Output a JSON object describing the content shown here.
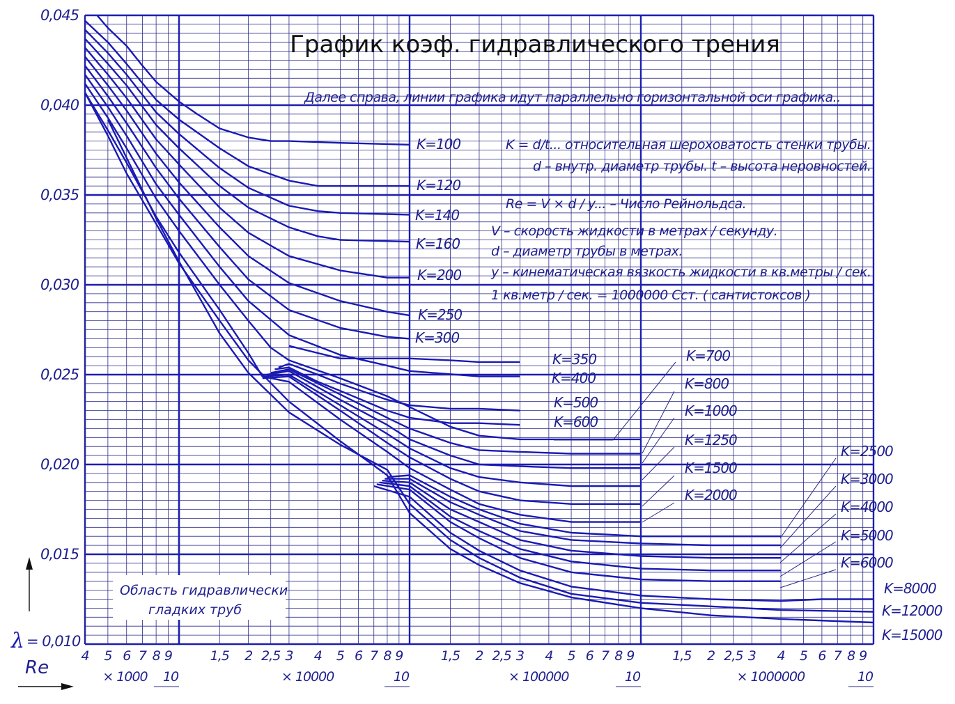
{
  "chart_data": {
    "type": "line",
    "title": "График коэф. гидравлического трения",
    "ylabel": "λ",
    "xlabel": "Re",
    "ylim": [
      0.01,
      0.045
    ],
    "xlim": [
      4000,
      10000000
    ],
    "x_scale": "log",
    "grid": true,
    "y_ticks": [
      "0,045",
      "0,040",
      "0,035",
      "0,030",
      "0,025",
      "0,020",
      "0,015",
      "0,010"
    ],
    "y_tick_values": [
      0.045,
      0.04,
      0.035,
      0.03,
      0.025,
      0.02,
      0.015,
      0.01
    ],
    "x_decades": [
      {
        "ticks": [
          "4",
          "5",
          "6",
          "7",
          "8",
          "9"
        ],
        "values": [
          4000,
          5000,
          6000,
          7000,
          8000,
          9000
        ],
        "multiplier": "× 1000",
        "end": "10",
        "end_value": 10000
      },
      {
        "ticks": [
          "1,5",
          "2",
          "2,5",
          "3",
          "4",
          "5",
          "6",
          "7",
          "8",
          "9"
        ],
        "values": [
          15000,
          20000,
          25000,
          30000,
          40000,
          50000,
          60000,
          70000,
          80000,
          90000
        ],
        "multiplier": "× 10000",
        "end": "10",
        "end_value": 100000
      },
      {
        "ticks": [
          "1,5",
          "2",
          "2,5",
          "3",
          "4",
          "5",
          "6",
          "7",
          "8",
          "9"
        ],
        "values": [
          150000,
          200000,
          250000,
          300000,
          400000,
          500000,
          600000,
          700000,
          800000,
          900000
        ],
        "multiplier": "× 100000",
        "end": "10",
        "end_value": 1000000
      },
      {
        "ticks": [
          "1,5",
          "2",
          "2,5",
          "3",
          "4",
          "5",
          "6",
          "7",
          "8",
          "9"
        ],
        "values": [
          1500000,
          2000000,
          2500000,
          3000000,
          4000000,
          5000000,
          6000000,
          7000000,
          8000000,
          9000000
        ],
        "multiplier": "× 1000000",
        "end": "10",
        "end_value": 10000000
      }
    ],
    "series": [
      {
        "name": "K=100",
        "x": [
          4500,
          5000,
          6000,
          7000,
          8000,
          10000,
          12000,
          15000,
          20000,
          25000,
          30000,
          50000,
          100000
        ],
        "y": [
          0.045,
          0.0443,
          0.0433,
          0.0422,
          0.0413,
          0.0402,
          0.0395,
          0.0387,
          0.0382,
          0.038,
          0.038,
          0.0379,
          0.0378
        ]
      },
      {
        "name": "K=120",
        "x": [
          4000,
          5000,
          6000,
          8000,
          10000,
          15000,
          20000,
          30000,
          40000,
          50000,
          100000
        ],
        "y": [
          0.0447,
          0.0435,
          0.0423,
          0.0403,
          0.0392,
          0.0376,
          0.0366,
          0.0358,
          0.0355,
          0.0355,
          0.0355
        ]
      },
      {
        "name": "K=140",
        "x": [
          4000,
          5000,
          6000,
          8000,
          10000,
          15000,
          20000,
          30000,
          40000,
          50000,
          100000
        ],
        "y": [
          0.0442,
          0.0429,
          0.0417,
          0.0396,
          0.0384,
          0.0365,
          0.0354,
          0.0344,
          0.0341,
          0.034,
          0.0339
        ]
      },
      {
        "name": "K=160",
        "x": [
          4000,
          5000,
          6000,
          8000,
          10000,
          15000,
          20000,
          30000,
          40000,
          50000,
          100000
        ],
        "y": [
          0.0437,
          0.0423,
          0.0411,
          0.0389,
          0.0376,
          0.0355,
          0.0343,
          0.0332,
          0.0327,
          0.0325,
          0.0324
        ]
      },
      {
        "name": "K=200",
        "x": [
          4000,
          5000,
          6000,
          8000,
          10000,
          15000,
          20000,
          30000,
          50000,
          80000,
          100000
        ],
        "y": [
          0.0432,
          0.0417,
          0.0404,
          0.0381,
          0.0367,
          0.0343,
          0.0329,
          0.0316,
          0.0308,
          0.0304,
          0.0304
        ]
      },
      {
        "name": "K=250",
        "x": [
          4000,
          5000,
          6000,
          8000,
          10000,
          15000,
          20000,
          30000,
          50000,
          80000,
          100000
        ],
        "y": [
          0.0427,
          0.0411,
          0.0397,
          0.0373,
          0.0357,
          0.0332,
          0.0316,
          0.0301,
          0.0291,
          0.0285,
          0.0283
        ]
      },
      {
        "name": "K=300",
        "x": [
          4000,
          5000,
          6000,
          8000,
          10000,
          15000,
          20000,
          30000,
          50000,
          80000,
          100000
        ],
        "y": [
          0.0422,
          0.0405,
          0.039,
          0.0365,
          0.0348,
          0.0321,
          0.0303,
          0.0286,
          0.0276,
          0.0271,
          0.027
        ]
      },
      {
        "name": "K=350",
        "x": [
          30000,
          40000,
          50000,
          80000,
          100000,
          150000,
          200000,
          300000
        ],
        "y": [
          0.0266,
          0.0262,
          0.0259,
          0.0259,
          0.0259,
          0.0258,
          0.0257,
          0.0257
        ]
      },
      {
        "name": "K=400",
        "x": [
          4000,
          5000,
          6000,
          8000,
          10000,
          15000,
          20000,
          30000,
          50000,
          80000,
          100000,
          200000,
          300000
        ],
        "y": [
          0.0417,
          0.0399,
          0.0383,
          0.0356,
          0.0339,
          0.031,
          0.0291,
          0.0272,
          0.0261,
          0.0255,
          0.0252,
          0.0249,
          0.0249
        ]
      },
      {
        "name": "K=500",
        "x": [
          27000,
          30000,
          40000,
          50000,
          80000,
          100000,
          150000,
          200000,
          300000
        ],
        "y": [
          0.0254,
          0.0256,
          0.025,
          0.0245,
          0.0236,
          0.0233,
          0.0231,
          0.0231,
          0.023
        ]
      },
      {
        "name": "K=600",
        "x": [
          26000,
          30000,
          40000,
          50000,
          80000,
          100000,
          150000,
          200000,
          300000
        ],
        "y": [
          0.0253,
          0.0254,
          0.0246,
          0.0241,
          0.023,
          0.0226,
          0.0223,
          0.0223,
          0.0222
        ]
      },
      {
        "name": "K=700",
        "x": [
          4000,
          5000,
          6000,
          8000,
          10000,
          15000,
          20000,
          25000,
          30000,
          50000,
          80000,
          100000,
          150000,
          200000,
          300000,
          500000,
          1000000
        ],
        "y": [
          0.0412,
          0.0393,
          0.0376,
          0.0348,
          0.033,
          0.03,
          0.028,
          0.0265,
          0.0258,
          0.0248,
          0.0238,
          0.0232,
          0.0221,
          0.0216,
          0.0214,
          0.0214,
          0.0214
        ]
      },
      {
        "name": "K=800",
        "x": [
          25000,
          30000,
          50000,
          80000,
          100000,
          150000,
          200000,
          300000,
          500000,
          1000000
        ],
        "y": [
          0.0251,
          0.0253,
          0.0239,
          0.0226,
          0.022,
          0.0212,
          0.0208,
          0.0207,
          0.0206,
          0.0206
        ]
      },
      {
        "name": "K=1000",
        "x": [
          24000,
          30000,
          50000,
          80000,
          100000,
          150000,
          200000,
          300000,
          500000,
          1000000
        ],
        "y": [
          0.025,
          0.0252,
          0.0236,
          0.0222,
          0.0214,
          0.0205,
          0.02,
          0.0199,
          0.0198,
          0.0198
        ]
      },
      {
        "name": "K=1250",
        "x": [
          23500,
          30000,
          50000,
          80000,
          100000,
          150000,
          200000,
          300000,
          500000,
          1000000
        ],
        "y": [
          0.0249,
          0.025,
          0.0233,
          0.0217,
          0.0209,
          0.0198,
          0.0193,
          0.019,
          0.0188,
          0.0188
        ]
      },
      {
        "name": "K=1500",
        "x": [
          23000,
          30000,
          50000,
          80000,
          100000,
          150000,
          200000,
          300000,
          500000,
          1000000
        ],
        "y": [
          0.0248,
          0.0249,
          0.023,
          0.0212,
          0.0204,
          0.0192,
          0.0185,
          0.018,
          0.0178,
          0.0178
        ]
      },
      {
        "name": "K=2000",
        "x": [
          4000,
          5000,
          6000,
          8000,
          10000,
          15000,
          20000,
          23000,
          30000,
          50000,
          80000,
          100000,
          150000,
          200000,
          300000,
          500000,
          1000000
        ],
        "y": [
          0.0407,
          0.0386,
          0.0368,
          0.0338,
          0.0318,
          0.0286,
          0.0262,
          0.0249,
          0.0246,
          0.0225,
          0.0207,
          0.0198,
          0.0186,
          0.0178,
          0.0172,
          0.0168,
          0.0168
        ]
      },
      {
        "name": "K=2500",
        "x": [
          80000,
          100000,
          150000,
          200000,
          300000,
          500000,
          1000000,
          2000000,
          4000000
        ],
        "y": [
          0.0193,
          0.0194,
          0.0182,
          0.0175,
          0.0167,
          0.0162,
          0.016,
          0.016,
          0.016
        ]
      },
      {
        "name": "K=3000",
        "x": [
          78000,
          100000,
          150000,
          200000,
          300000,
          500000,
          1000000,
          2000000,
          4000000
        ],
        "y": [
          0.0192,
          0.0192,
          0.0179,
          0.0172,
          0.0163,
          0.0158,
          0.0156,
          0.0155,
          0.0155
        ]
      },
      {
        "name": "K=4000",
        "x": [
          76000,
          100000,
          150000,
          200000,
          300000,
          500000,
          1000000,
          2000000,
          4000000
        ],
        "y": [
          0.0191,
          0.019,
          0.0175,
          0.0168,
          0.0158,
          0.0152,
          0.0149,
          0.0148,
          0.0148
        ]
      },
      {
        "name": "K=5000",
        "x": [
          74000,
          100000,
          150000,
          200000,
          300000,
          500000,
          1000000,
          2000000,
          4000000
        ],
        "y": [
          0.019,
          0.0188,
          0.0171,
          0.0163,
          0.0153,
          0.0146,
          0.0142,
          0.0141,
          0.0141
        ]
      },
      {
        "name": "K=6000",
        "x": [
          72000,
          100000,
          150000,
          200000,
          300000,
          500000,
          1000000,
          2000000,
          4000000
        ],
        "y": [
          0.0189,
          0.0186,
          0.0168,
          0.0159,
          0.0148,
          0.014,
          0.0136,
          0.0135,
          0.0135
        ]
      },
      {
        "name": "K=8000",
        "x": [
          70000,
          100000,
          150000,
          200000,
          300000,
          500000,
          1000000,
          2000000,
          4000000,
          6000000,
          10000000
        ],
        "y": [
          0.0188,
          0.0182,
          0.0162,
          0.0152,
          0.0141,
          0.0132,
          0.0127,
          0.0125,
          0.0124,
          0.0125,
          0.0125
        ]
      },
      {
        "name": "K=12000",
        "x": [
          5000,
          8000,
          10000,
          15000,
          20000,
          30000,
          50000,
          80000,
          100000,
          150000,
          200000,
          300000,
          500000,
          1000000,
          2000000,
          4000000,
          10000000
        ],
        "y": [
          0.0392,
          0.0337,
          0.0313,
          0.0273,
          0.0251,
          0.0229,
          0.0211,
          0.0197,
          0.0178,
          0.0158,
          0.0148,
          0.0137,
          0.0128,
          0.0123,
          0.0121,
          0.0119,
          0.0118
        ]
      },
      {
        "name": "K=15000",
        "x": [
          4000,
          5000,
          6000,
          8000,
          10000,
          15000,
          20000,
          30000,
          50000,
          80000,
          100000,
          150000,
          200000,
          300000,
          500000,
          1000000,
          2000000,
          4000000,
          10000000
        ],
        "y": [
          0.0407,
          0.0383,
          0.0362,
          0.0334,
          0.0312,
          0.028,
          0.0258,
          0.0235,
          0.0213,
          0.0194,
          0.0173,
          0.0153,
          0.0144,
          0.0134,
          0.0126,
          0.012,
          0.0116,
          0.0114,
          0.0112
        ]
      }
    ]
  },
  "text": {
    "note_right": "Далее справа, линии графика идут параллельно горизонтальной оси графика..",
    "formula_k": "K = d/t...    относительная шероховатость стенки трубы.",
    "formula_k_desc": "d – внутр. диаметр трубы.   t – высота неровностей.",
    "formula_re": "Re = V × d / y...   –   Число Рейнольдса.",
    "def_v": "V – скорость жидкости в метрах / секунду.",
    "def_d": "d – диаметр трубы в метрах.",
    "def_y": "y – кинематическая вязкость жидкости в кв.метры / сек.",
    "def_unit": "1 кв.метр / сек.   =  1000000 Сст. ( сантистоксов )",
    "area_line1": "Область гидравлически",
    "area_line2": "гладких труб",
    "lambda_symbol": "λ",
    "lambda_suffix": "= 0,010",
    "re_label": "Re"
  },
  "colors": {
    "ink": "#1a1ab4",
    "grid": "#2a2a8a",
    "text": "#1f1f8f",
    "title": "#111111"
  }
}
